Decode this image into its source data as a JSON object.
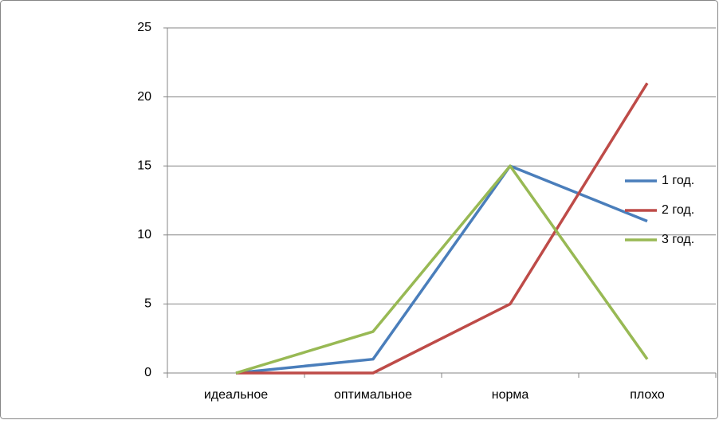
{
  "chart_data": {
    "type": "line",
    "categories": [
      "идеальное",
      "оптимальное",
      "норма",
      "плохо"
    ],
    "series": [
      {
        "name": "1 год.",
        "color": "#4a7ebb",
        "values": [
          0,
          1,
          15,
          11
        ]
      },
      {
        "name": "2 год.",
        "color": "#be4b48",
        "values": [
          0,
          0,
          5,
          21
        ]
      },
      {
        "name": "3 год.",
        "color": "#98b954",
        "values": [
          0,
          3,
          15,
          1
        ]
      }
    ],
    "ylim": [
      0,
      25
    ],
    "yticks": [
      0,
      5,
      10,
      15,
      20,
      25
    ],
    "grid": true,
    "legend": "right"
  }
}
